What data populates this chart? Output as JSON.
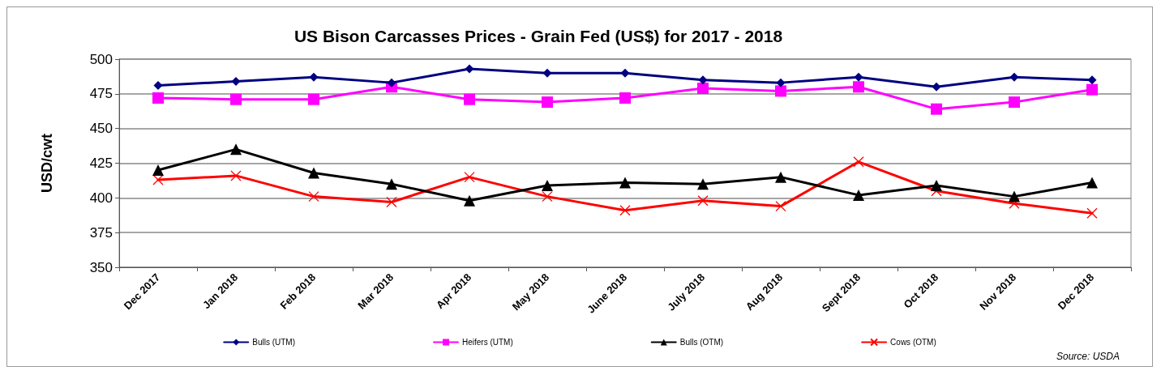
{
  "chart_data": {
    "type": "line",
    "title": "US Bison Carcasses Prices - Grain Fed (US$) for 2017 - 2018",
    "ylabel": "USD/cwt",
    "categories": [
      "Dec 2017",
      "Jan 2018",
      "Feb 2018",
      "Mar 2018",
      "Apr 2018",
      "May 2018",
      "June 2018",
      "July 2018",
      "Aug 2018",
      "Sept 2018",
      "Oct 2018",
      "Nov 2018",
      "Dec 2018"
    ],
    "series": [
      {
        "name": "Bulls (UTM)",
        "color": "#000080",
        "marker": "diamond",
        "values": [
          481,
          484,
          487,
          483,
          493,
          490,
          490,
          485,
          483,
          487,
          480,
          487,
          485
        ]
      },
      {
        "name": "Heifers (UTM)",
        "color": "#ff00ff",
        "marker": "square",
        "values": [
          472,
          471,
          471,
          480,
          471,
          469,
          472,
          479,
          477,
          480,
          464,
          469,
          478
        ]
      },
      {
        "name": "Bulls (OTM)",
        "color": "#000000",
        "marker": "triangle",
        "values": [
          420,
          435,
          418,
          410,
          398,
          409,
          411,
          410,
          415,
          402,
          409,
          401,
          411
        ]
      },
      {
        "name": "Cows (OTM)",
        "color": "#ff0000",
        "marker": "cross",
        "values": [
          413,
          416,
          401,
          397,
          415,
          401,
          391,
          398,
          394,
          426,
          405,
          396,
          389
        ]
      }
    ],
    "ylim": [
      350,
      500
    ],
    "yticks": [
      350,
      375,
      400,
      425,
      450,
      475,
      500
    ],
    "grid": "y",
    "legend": "bottom",
    "line_style": "solid",
    "annotations": [
      "Source: USDA"
    ]
  }
}
